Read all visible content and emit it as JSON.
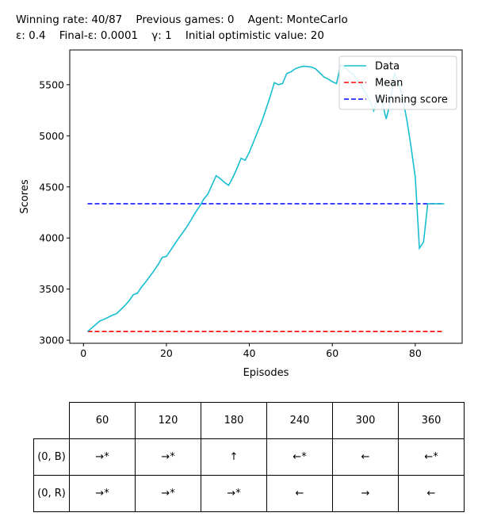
{
  "header": {
    "line1": "Winning rate: 40/87    Previous games: 0    Agent: MonteCarlo",
    "line2": "ε: 0.4    Final-ε: 0.0001    γ: 1    Initial optimistic value: 20"
  },
  "chart_data": {
    "type": "line",
    "xlabel": "Episodes",
    "ylabel": "Scores",
    "xlim": [
      -3.3,
      91.3
    ],
    "ylim": [
      2970,
      5840
    ],
    "xticks": [
      0,
      20,
      40,
      60,
      80
    ],
    "yticks": [
      3000,
      3500,
      4000,
      4500,
      5000,
      5500
    ],
    "grid": false,
    "legend_position": "top-right",
    "series": [
      {
        "name": "Data",
        "color": "#17becf",
        "style": "solid",
        "x": [
          1,
          2,
          3,
          4,
          5,
          6,
          7,
          8,
          9,
          10,
          11,
          12,
          13,
          14,
          15,
          16,
          17,
          18,
          19,
          20,
          21,
          22,
          23,
          24,
          25,
          26,
          27,
          28,
          29,
          30,
          31,
          32,
          33,
          34,
          35,
          36,
          37,
          38,
          39,
          40,
          41,
          42,
          43,
          44,
          45,
          46,
          47,
          48,
          49,
          50,
          51,
          52,
          53,
          54,
          55,
          56,
          57,
          58,
          59,
          60,
          61,
          62,
          63,
          64,
          65,
          66,
          67,
          68,
          69,
          70,
          71,
          72,
          73,
          74,
          75,
          76,
          77,
          78,
          79,
          80,
          81,
          82,
          83,
          84,
          85,
          86,
          87
        ],
        "y": [
          3085,
          3120,
          3155,
          3190,
          3205,
          3225,
          3245,
          3260,
          3300,
          3340,
          3385,
          3445,
          3460,
          3520,
          3570,
          3625,
          3680,
          3740,
          3810,
          3820,
          3880,
          3940,
          4000,
          4055,
          4115,
          4180,
          4250,
          4310,
          4380,
          4430,
          4520,
          4610,
          4580,
          4545,
          4515,
          4590,
          4680,
          4780,
          4760,
          4840,
          4940,
          5040,
          5140,
          5260,
          5380,
          5520,
          5500,
          5510,
          5610,
          5625,
          5655,
          5670,
          5680,
          5678,
          5672,
          5655,
          5615,
          5575,
          5555,
          5530,
          5510,
          5695,
          5670,
          5635,
          5600,
          5555,
          5490,
          5420,
          5345,
          5245,
          5385,
          5330,
          5165,
          5330,
          5610,
          5525,
          5360,
          5150,
          4890,
          4590,
          3900,
          3960,
          4335,
          4335,
          4335,
          4335,
          4335
        ]
      },
      {
        "name": "Mean",
        "color": "#ff0000",
        "style": "dashed",
        "x": [
          1,
          87
        ],
        "y": [
          3085,
          3085
        ]
      },
      {
        "name": "Winning score",
        "color": "#0000ff",
        "style": "dashed",
        "x": [
          1,
          87
        ],
        "y": [
          4335,
          4335
        ]
      }
    ]
  },
  "policy_table": {
    "columns": [
      "60",
      "120",
      "180",
      "240",
      "300",
      "360"
    ],
    "rows": [
      {
        "label": "(0, B)",
        "cells": [
          "→*",
          "→*",
          "↑",
          "←*",
          "←",
          "←*"
        ]
      },
      {
        "label": "(0, R)",
        "cells": [
          "→*",
          "→*",
          "→*",
          "←",
          "→",
          "←"
        ]
      }
    ]
  }
}
